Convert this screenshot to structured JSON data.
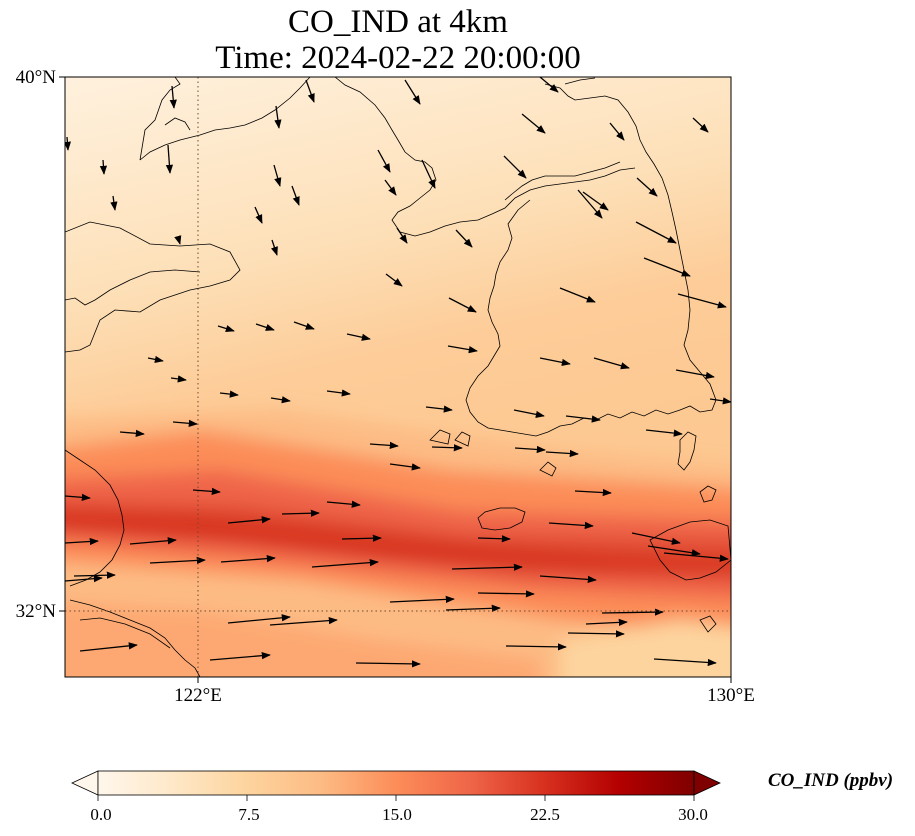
{
  "title": {
    "line1": "CO_IND at 4km",
    "line2": "Time: 2024-02-22 20:00:00"
  },
  "axes": {
    "lat_ticks": [
      {
        "value": 40,
        "label": "40°N"
      },
      {
        "value": 32,
        "label": "32°N"
      }
    ],
    "lon_ticks": [
      {
        "value": 122,
        "label": "122°E"
      },
      {
        "value": 130,
        "label": "130°E"
      }
    ],
    "extent": {
      "lon_min": 120,
      "lon_max": 130,
      "lat_min": 31,
      "lat_max": 40
    },
    "gridlines": "dotted at 122°E and 32°N"
  },
  "colorbar": {
    "title": "CO_IND (ppbv)",
    "min": 0.0,
    "max": 30.0,
    "ticks": [
      "0.0",
      "7.5",
      "15.0",
      "22.5",
      "30.0"
    ],
    "colormap": "OrRd",
    "extend": "both",
    "colors": [
      "#fff7ec",
      "#fee8c8",
      "#fdd49e",
      "#fdbb84",
      "#fc8d59",
      "#ef6548",
      "#d7301f",
      "#b30000",
      "#7f0000"
    ]
  },
  "chart_data": {
    "type": "heatmap",
    "variable": "CO_IND",
    "units": "ppbv",
    "level": "4km",
    "time": "2024-02-22 20:00:00",
    "field_description": "A high-concentration band of about 15–21 ppbv runs from the Yangtze delta near 33°N, 120°E east-southeast to 32.5°N, 130°E; levels are low, about 2–8 ppbv, over the Yellow Sea, Shandong and the Korean Peninsula to the north.",
    "wind_vectors": "winds from the northwest in the north turning westerly across the south of the domain"
  }
}
